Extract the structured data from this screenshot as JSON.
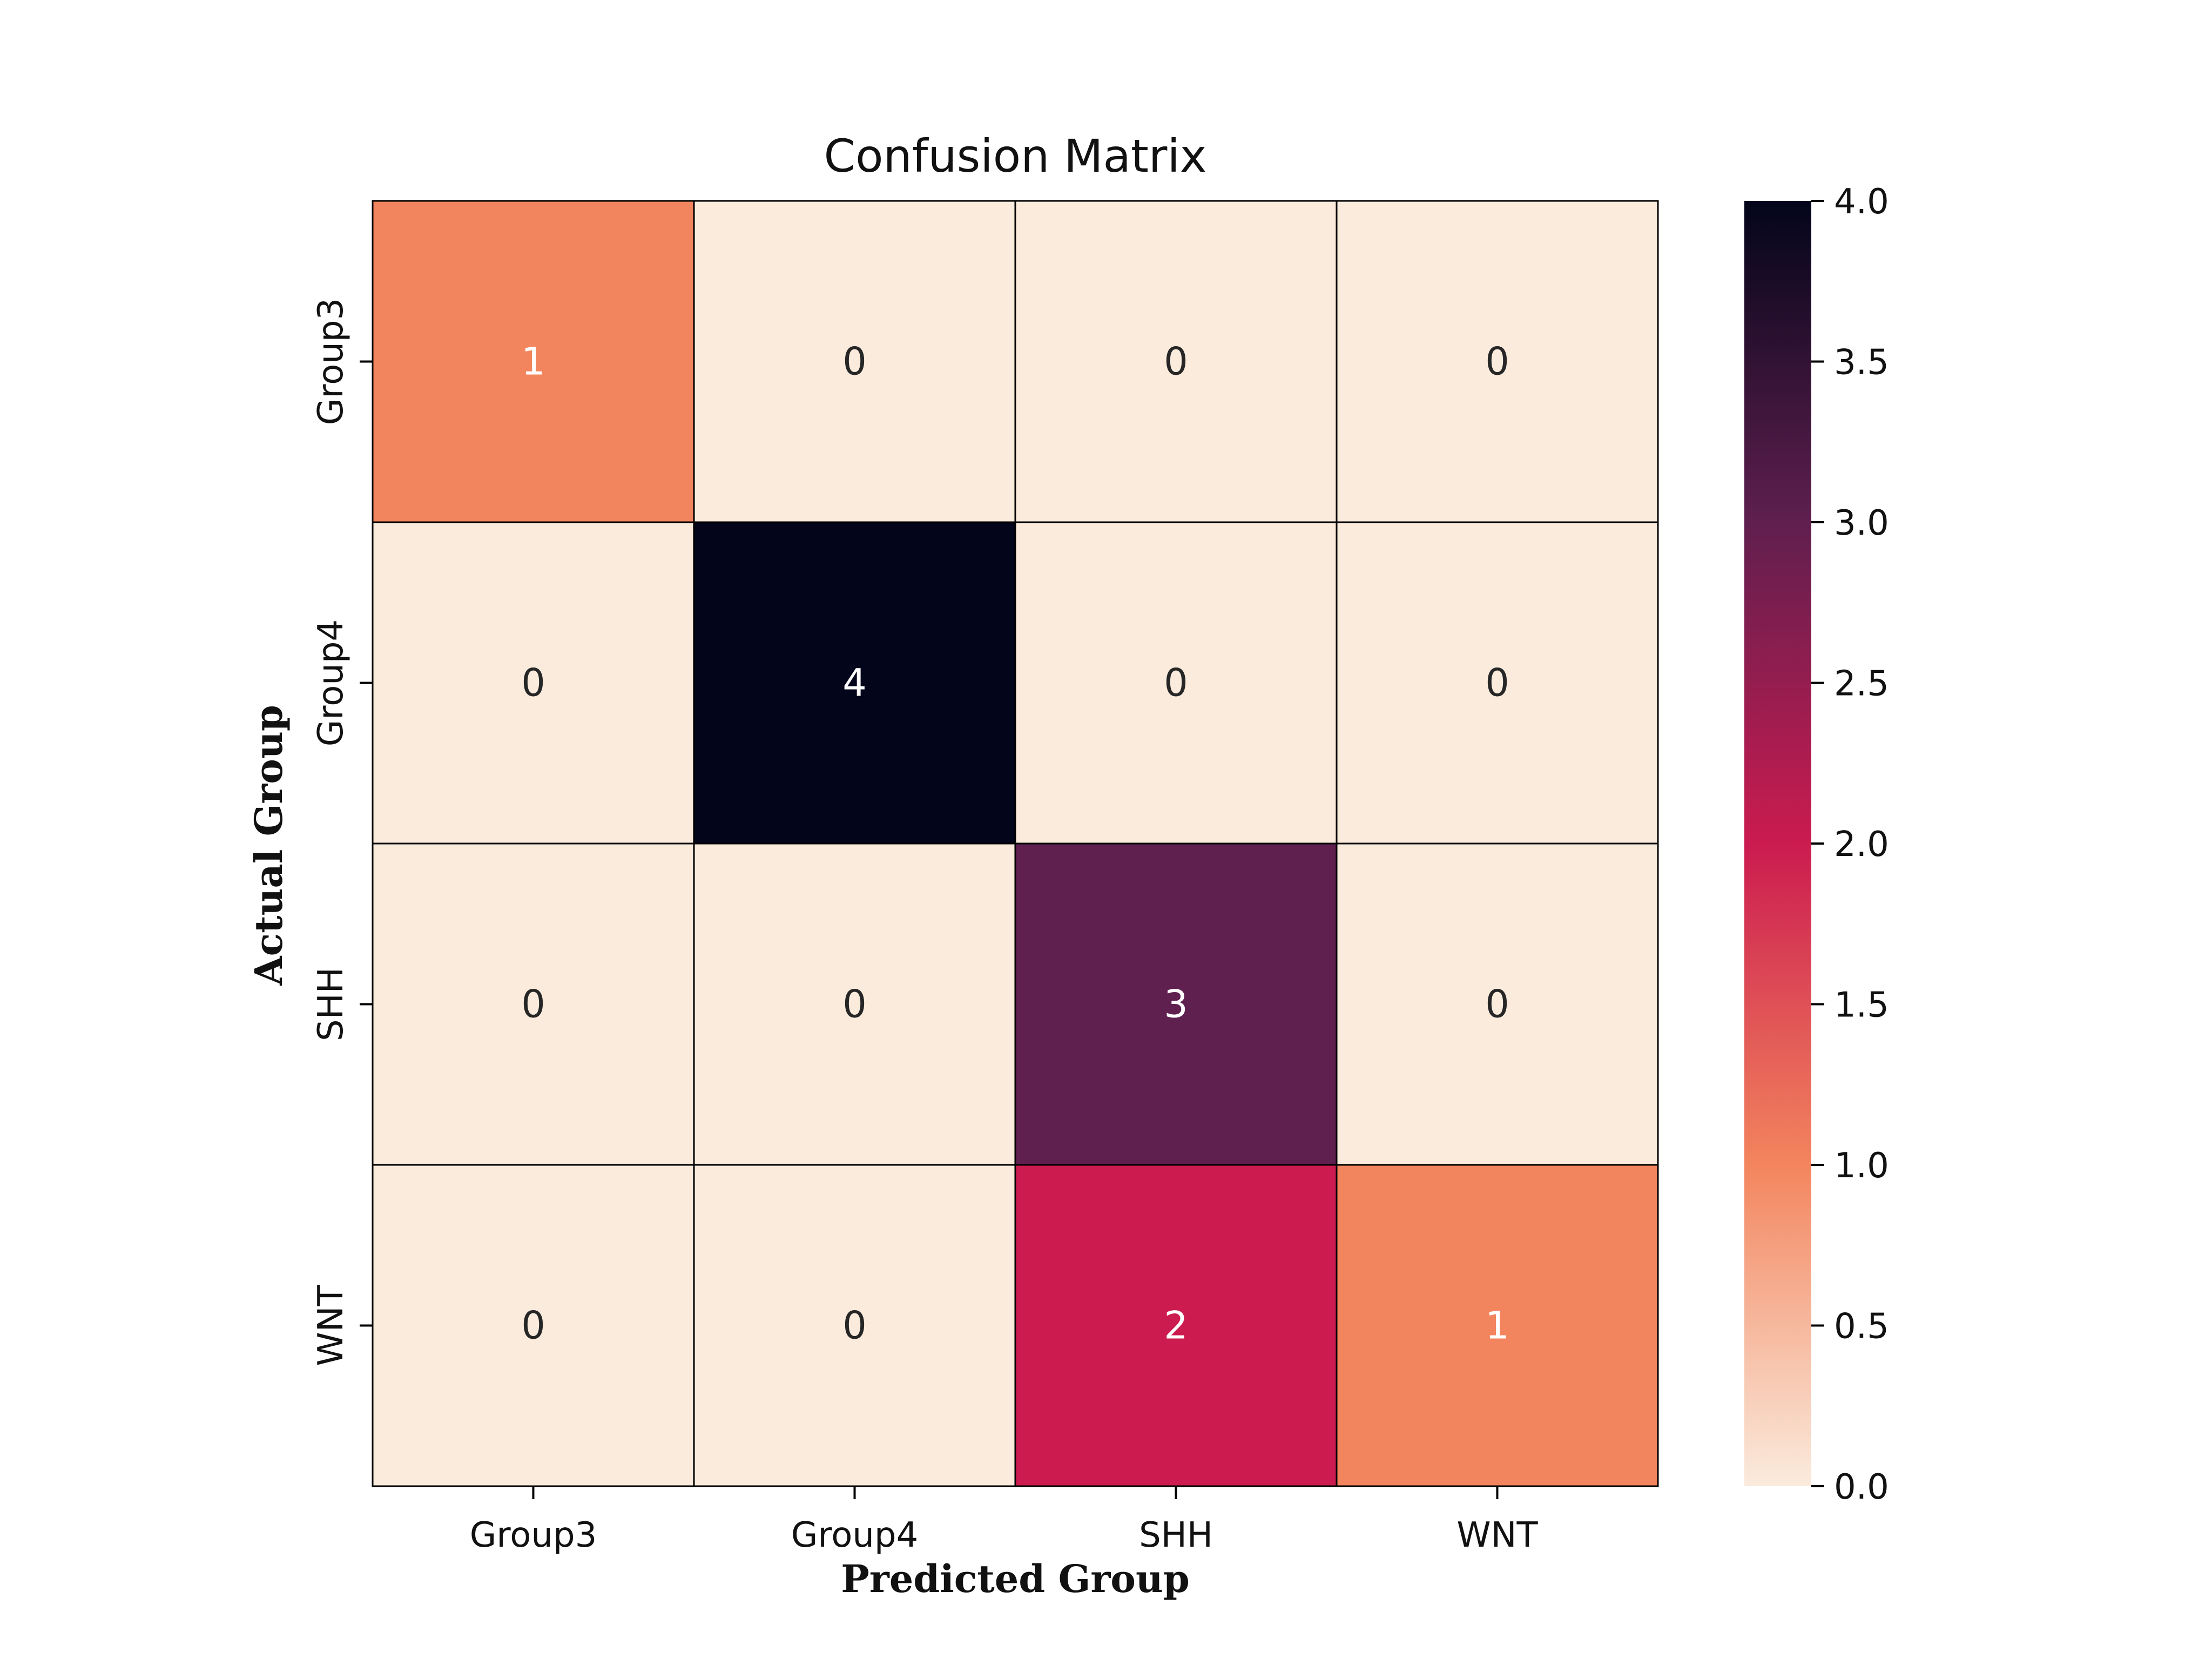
{
  "chart_data": {
    "type": "heatmap",
    "title": "Confusion Matrix",
    "xlabel": "Predicted Group",
    "ylabel": "Actual Group",
    "x_categories": [
      "Group3",
      "Group4",
      "SHH",
      "WNT"
    ],
    "y_categories": [
      "Group3",
      "Group4",
      "SHH",
      "WNT"
    ],
    "values": [
      [
        1,
        0,
        0,
        0
      ],
      [
        0,
        4,
        0,
        0
      ],
      [
        0,
        0,
        3,
        0
      ],
      [
        0,
        0,
        2,
        1
      ]
    ],
    "colorbar": {
      "range": [
        0,
        4
      ],
      "ticks": [
        "0.0",
        "0.5",
        "1.0",
        "1.5",
        "2.0",
        "2.5",
        "3.0",
        "3.5",
        "4.0"
      ],
      "colormap": "rocket_r",
      "colors": {
        "0": "#faebdd",
        "1": "#f3855e",
        "2": "#cb1b4f",
        "3": "#5f1f4f",
        "4": "#03051a"
      }
    }
  }
}
